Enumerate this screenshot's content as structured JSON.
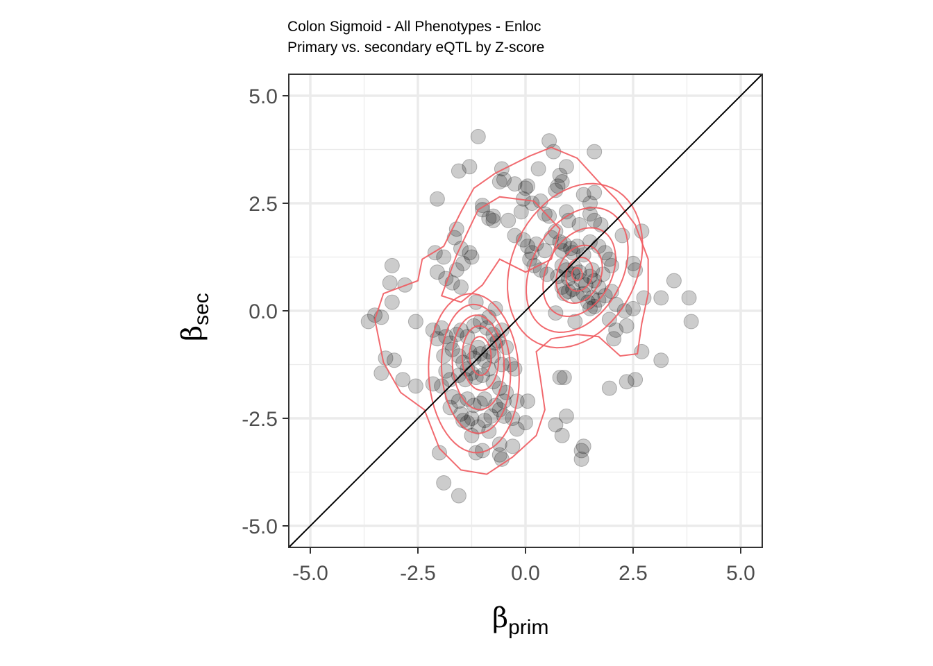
{
  "chart_data": {
    "type": "scatter",
    "title": "Colon Sigmoid - All Phenotypes - Enloc",
    "subtitle": "Primary vs. secondary eQTL by Z-score",
    "xlabel": {
      "symbol": "β",
      "subscript": "prim"
    },
    "ylabel": {
      "symbol": "β",
      "subscript": "sec"
    },
    "xlim": [
      -5.5,
      5.5
    ],
    "ylim": [
      -5.5,
      5.5
    ],
    "xticks": [
      -5,
      -2.5,
      0,
      2.5,
      5
    ],
    "yticks": [
      -5,
      -2.5,
      0,
      2.5,
      5
    ],
    "xtick_labels": [
      "-5.0",
      "-2.5",
      "0.0",
      "2.5",
      "5.0"
    ],
    "ytick_labels": [
      "-5.0",
      "-2.5",
      "0.0",
      "2.5",
      "5.0"
    ],
    "grid": true,
    "reference_line": "y = x",
    "point_color": "#000000",
    "point_opacity": 0.2,
    "contour_color": "#f05a5f",
    "points": [
      [
        -1.1,
        4.05
      ],
      [
        -1.3,
        3.35
      ],
      [
        -1.55,
        3.25
      ],
      [
        -0.55,
        3.3
      ],
      [
        -0.6,
        3.0
      ],
      [
        -0.5,
        3.05
      ],
      [
        -0.25,
        2.95
      ],
      [
        0.0,
        2.85
      ],
      [
        0.05,
        2.9
      ],
      [
        0.3,
        3.3
      ],
      [
        0.55,
        3.95
      ],
      [
        0.65,
        3.7
      ],
      [
        0.75,
        2.9
      ],
      [
        0.7,
        2.8
      ],
      [
        0.8,
        3.15
      ],
      [
        0.95,
        3.35
      ],
      [
        0.85,
        3.0
      ],
      [
        1.6,
        3.7
      ],
      [
        1.35,
        2.7
      ],
      [
        1.5,
        2.5
      ],
      [
        1.6,
        2.75
      ],
      [
        -2.05,
        2.6
      ],
      [
        -1.0,
        2.45
      ],
      [
        -1.0,
        2.35
      ],
      [
        -0.85,
        2.15
      ],
      [
        -0.75,
        2.2
      ],
      [
        -0.75,
        2.1
      ],
      [
        -0.4,
        2.1
      ],
      [
        -0.1,
        2.3
      ],
      [
        -0.05,
        2.6
      ],
      [
        0.15,
        2.5
      ],
      [
        0.35,
        2.55
      ],
      [
        0.45,
        2.25
      ],
      [
        0.55,
        2.2
      ],
      [
        0.95,
        2.3
      ],
      [
        1.0,
        2.1
      ],
      [
        1.25,
        2.0
      ],
      [
        1.5,
        2.25
      ],
      [
        1.6,
        2.1
      ],
      [
        1.75,
        2.0
      ],
      [
        2.25,
        1.75
      ],
      [
        2.7,
        1.85
      ],
      [
        -1.6,
        1.9
      ],
      [
        -1.65,
        1.7
      ],
      [
        -1.5,
        1.45
      ],
      [
        -1.3,
        1.35
      ],
      [
        -1.25,
        1.25
      ],
      [
        -2.1,
        1.35
      ],
      [
        -1.9,
        1.25
      ],
      [
        -1.6,
        0.95
      ],
      [
        -1.45,
        1.1
      ],
      [
        -2.05,
        0.9
      ],
      [
        -1.85,
        0.75
      ],
      [
        -1.7,
        0.65
      ],
      [
        -1.5,
        0.55
      ],
      [
        -3.1,
        1.05
      ],
      [
        -3.15,
        0.65
      ],
      [
        -2.8,
        0.6
      ],
      [
        -3.1,
        0.2
      ],
      [
        -0.25,
        1.75
      ],
      [
        -0.05,
        1.65
      ],
      [
        0.05,
        1.5
      ],
      [
        0.15,
        1.35
      ],
      [
        0.25,
        1.55
      ],
      [
        0.45,
        1.4
      ],
      [
        0.6,
        1.7
      ],
      [
        0.7,
        1.85
      ],
      [
        0.8,
        1.6
      ],
      [
        0.85,
        1.4
      ],
      [
        0.9,
        1.55
      ],
      [
        1.05,
        1.45
      ],
      [
        1.1,
        1.35
      ],
      [
        1.2,
        1.5
      ],
      [
        1.35,
        1.3
      ],
      [
        1.5,
        1.6
      ],
      [
        1.7,
        1.5
      ],
      [
        1.85,
        1.35
      ],
      [
        1.95,
        1.2
      ],
      [
        0.1,
        1.2
      ],
      [
        0.2,
        1.05
      ],
      [
        0.35,
        0.95
      ],
      [
        0.5,
        0.85
      ],
      [
        0.75,
        0.8
      ],
      [
        0.85,
        1.05
      ],
      [
        0.95,
        0.95
      ],
      [
        1.0,
        0.75
      ],
      [
        1.1,
        0.85
      ],
      [
        1.15,
        1.0
      ],
      [
        1.25,
        0.9
      ],
      [
        1.3,
        0.7
      ],
      [
        1.4,
        0.6
      ],
      [
        1.5,
        0.8
      ],
      [
        1.55,
        0.95
      ],
      [
        1.6,
        0.7
      ],
      [
        1.7,
        0.55
      ],
      [
        1.8,
        0.85
      ],
      [
        2.0,
        1.05
      ],
      [
        2.5,
        1.1
      ],
      [
        2.55,
        0.95
      ],
      [
        0.85,
        0.55
      ],
      [
        0.9,
        0.4
      ],
      [
        1.0,
        0.45
      ],
      [
        1.1,
        0.5
      ],
      [
        1.2,
        0.35
      ],
      [
        1.35,
        0.4
      ],
      [
        1.45,
        0.2
      ],
      [
        1.55,
        0.3
      ],
      [
        1.6,
        0.1
      ],
      [
        1.7,
        0.25
      ],
      [
        1.85,
        0.35
      ],
      [
        2.0,
        0.45
      ],
      [
        2.1,
        0.15
      ],
      [
        2.3,
        0.0
      ],
      [
        2.5,
        0.05
      ],
      [
        2.75,
        0.3
      ],
      [
        3.15,
        0.3
      ],
      [
        3.45,
        0.7
      ],
      [
        3.8,
        0.3
      ],
      [
        3.85,
        -0.25
      ],
      [
        0.7,
        -0.05
      ],
      [
        1.15,
        -0.25
      ],
      [
        1.5,
        0.05
      ],
      [
        1.95,
        -0.2
      ],
      [
        2.1,
        -0.45
      ],
      [
        2.35,
        -0.35
      ],
      [
        2.05,
        -0.65
      ],
      [
        2.7,
        -0.95
      ],
      [
        3.15,
        -1.15
      ],
      [
        -3.65,
        -0.25
      ],
      [
        -3.5,
        -0.1
      ],
      [
        -3.35,
        -0.15
      ],
      [
        -3.25,
        -1.1
      ],
      [
        -3.05,
        -1.15
      ],
      [
        -3.35,
        -1.45
      ],
      [
        -2.85,
        -1.6
      ],
      [
        -2.55,
        -0.25
      ],
      [
        -2.55,
        -1.75
      ],
      [
        -2.15,
        -0.45
      ],
      [
        -2.05,
        -0.65
      ],
      [
        -1.95,
        -0.4
      ],
      [
        -1.85,
        -0.6
      ],
      [
        -1.75,
        -0.75
      ],
      [
        -1.6,
        -0.55
      ],
      [
        -1.5,
        -0.45
      ],
      [
        -1.35,
        -0.6
      ],
      [
        -1.2,
        -0.35
      ],
      [
        -1.05,
        -0.25
      ],
      [
        -0.9,
        -0.4
      ],
      [
        -0.75,
        -0.55
      ],
      [
        -0.85,
        -0.15
      ],
      [
        -1.15,
        0.2
      ],
      [
        -0.7,
        0.05
      ],
      [
        -0.55,
        -0.45
      ],
      [
        -0.45,
        -0.85
      ],
      [
        -1.7,
        -0.9
      ],
      [
        -1.55,
        -1.05
      ],
      [
        -1.45,
        -1.2
      ],
      [
        -1.35,
        -1.35
      ],
      [
        -1.3,
        -0.95
      ],
      [
        -1.2,
        -1.1
      ],
      [
        -1.1,
        -0.85
      ],
      [
        -1.05,
        -1.0
      ],
      [
        -0.95,
        -1.15
      ],
      [
        -0.85,
        -0.95
      ],
      [
        -0.75,
        -1.05
      ],
      [
        -0.7,
        -0.75
      ],
      [
        -0.65,
        -0.7
      ],
      [
        -0.55,
        -1.25
      ],
      [
        -0.35,
        -1.25
      ],
      [
        -0.25,
        -1.35
      ],
      [
        -1.9,
        -1.05
      ],
      [
        -1.85,
        -1.4
      ],
      [
        -2.15,
        -1.7
      ],
      [
        -1.95,
        -1.75
      ],
      [
        -1.75,
        -1.6
      ],
      [
        -1.55,
        -1.5
      ],
      [
        -1.4,
        -1.6
      ],
      [
        -1.25,
        -1.45
      ],
      [
        -1.15,
        -1.55
      ],
      [
        -1.0,
        -1.5
      ],
      [
        -0.85,
        -1.35
      ],
      [
        -0.75,
        -1.65
      ],
      [
        -0.6,
        -1.8
      ],
      [
        -0.45,
        -1.9
      ],
      [
        -1.7,
        -2.0
      ],
      [
        -1.55,
        -2.1
      ],
      [
        -1.75,
        -2.25
      ],
      [
        -1.35,
        -2.05
      ],
      [
        -1.2,
        -2.2
      ],
      [
        -1.05,
        -2.15
      ],
      [
        -0.95,
        -2.05
      ],
      [
        -0.7,
        -2.2
      ],
      [
        -0.5,
        -2.1
      ],
      [
        -0.2,
        -2.1
      ],
      [
        0.05,
        -2.1
      ],
      [
        0.8,
        -1.55
      ],
      [
        0.9,
        -1.55
      ],
      [
        1.95,
        -1.8
      ],
      [
        2.35,
        -1.65
      ],
      [
        2.55,
        -1.6
      ],
      [
        -1.5,
        -2.4
      ],
      [
        -1.45,
        -2.55
      ],
      [
        -1.35,
        -2.6
      ],
      [
        -1.25,
        -2.5
      ],
      [
        -1.1,
        -2.7
      ],
      [
        -0.95,
        -2.55
      ],
      [
        -0.8,
        -2.45
      ],
      [
        -0.6,
        -2.3
      ],
      [
        -0.5,
        -2.45
      ],
      [
        -0.3,
        -2.5
      ],
      [
        -0.2,
        -2.75
      ],
      [
        0.0,
        -2.6
      ],
      [
        0.7,
        -2.65
      ],
      [
        0.95,
        -2.45
      ],
      [
        0.85,
        -2.9
      ],
      [
        -0.85,
        -2.8
      ],
      [
        -1.25,
        -2.9
      ],
      [
        -1.15,
        -3.3
      ],
      [
        -1.0,
        -3.25
      ],
      [
        -0.6,
        -3.1
      ],
      [
        -0.6,
        -3.35
      ],
      [
        -0.55,
        -3.45
      ],
      [
        -0.3,
        -3.15
      ],
      [
        1.35,
        -3.15
      ],
      [
        1.3,
        -3.25
      ],
      [
        1.3,
        -3.45
      ],
      [
        -2.0,
        -3.3
      ],
      [
        -1.9,
        -4.0
      ],
      [
        -1.55,
        -4.3
      ]
    ]
  }
}
